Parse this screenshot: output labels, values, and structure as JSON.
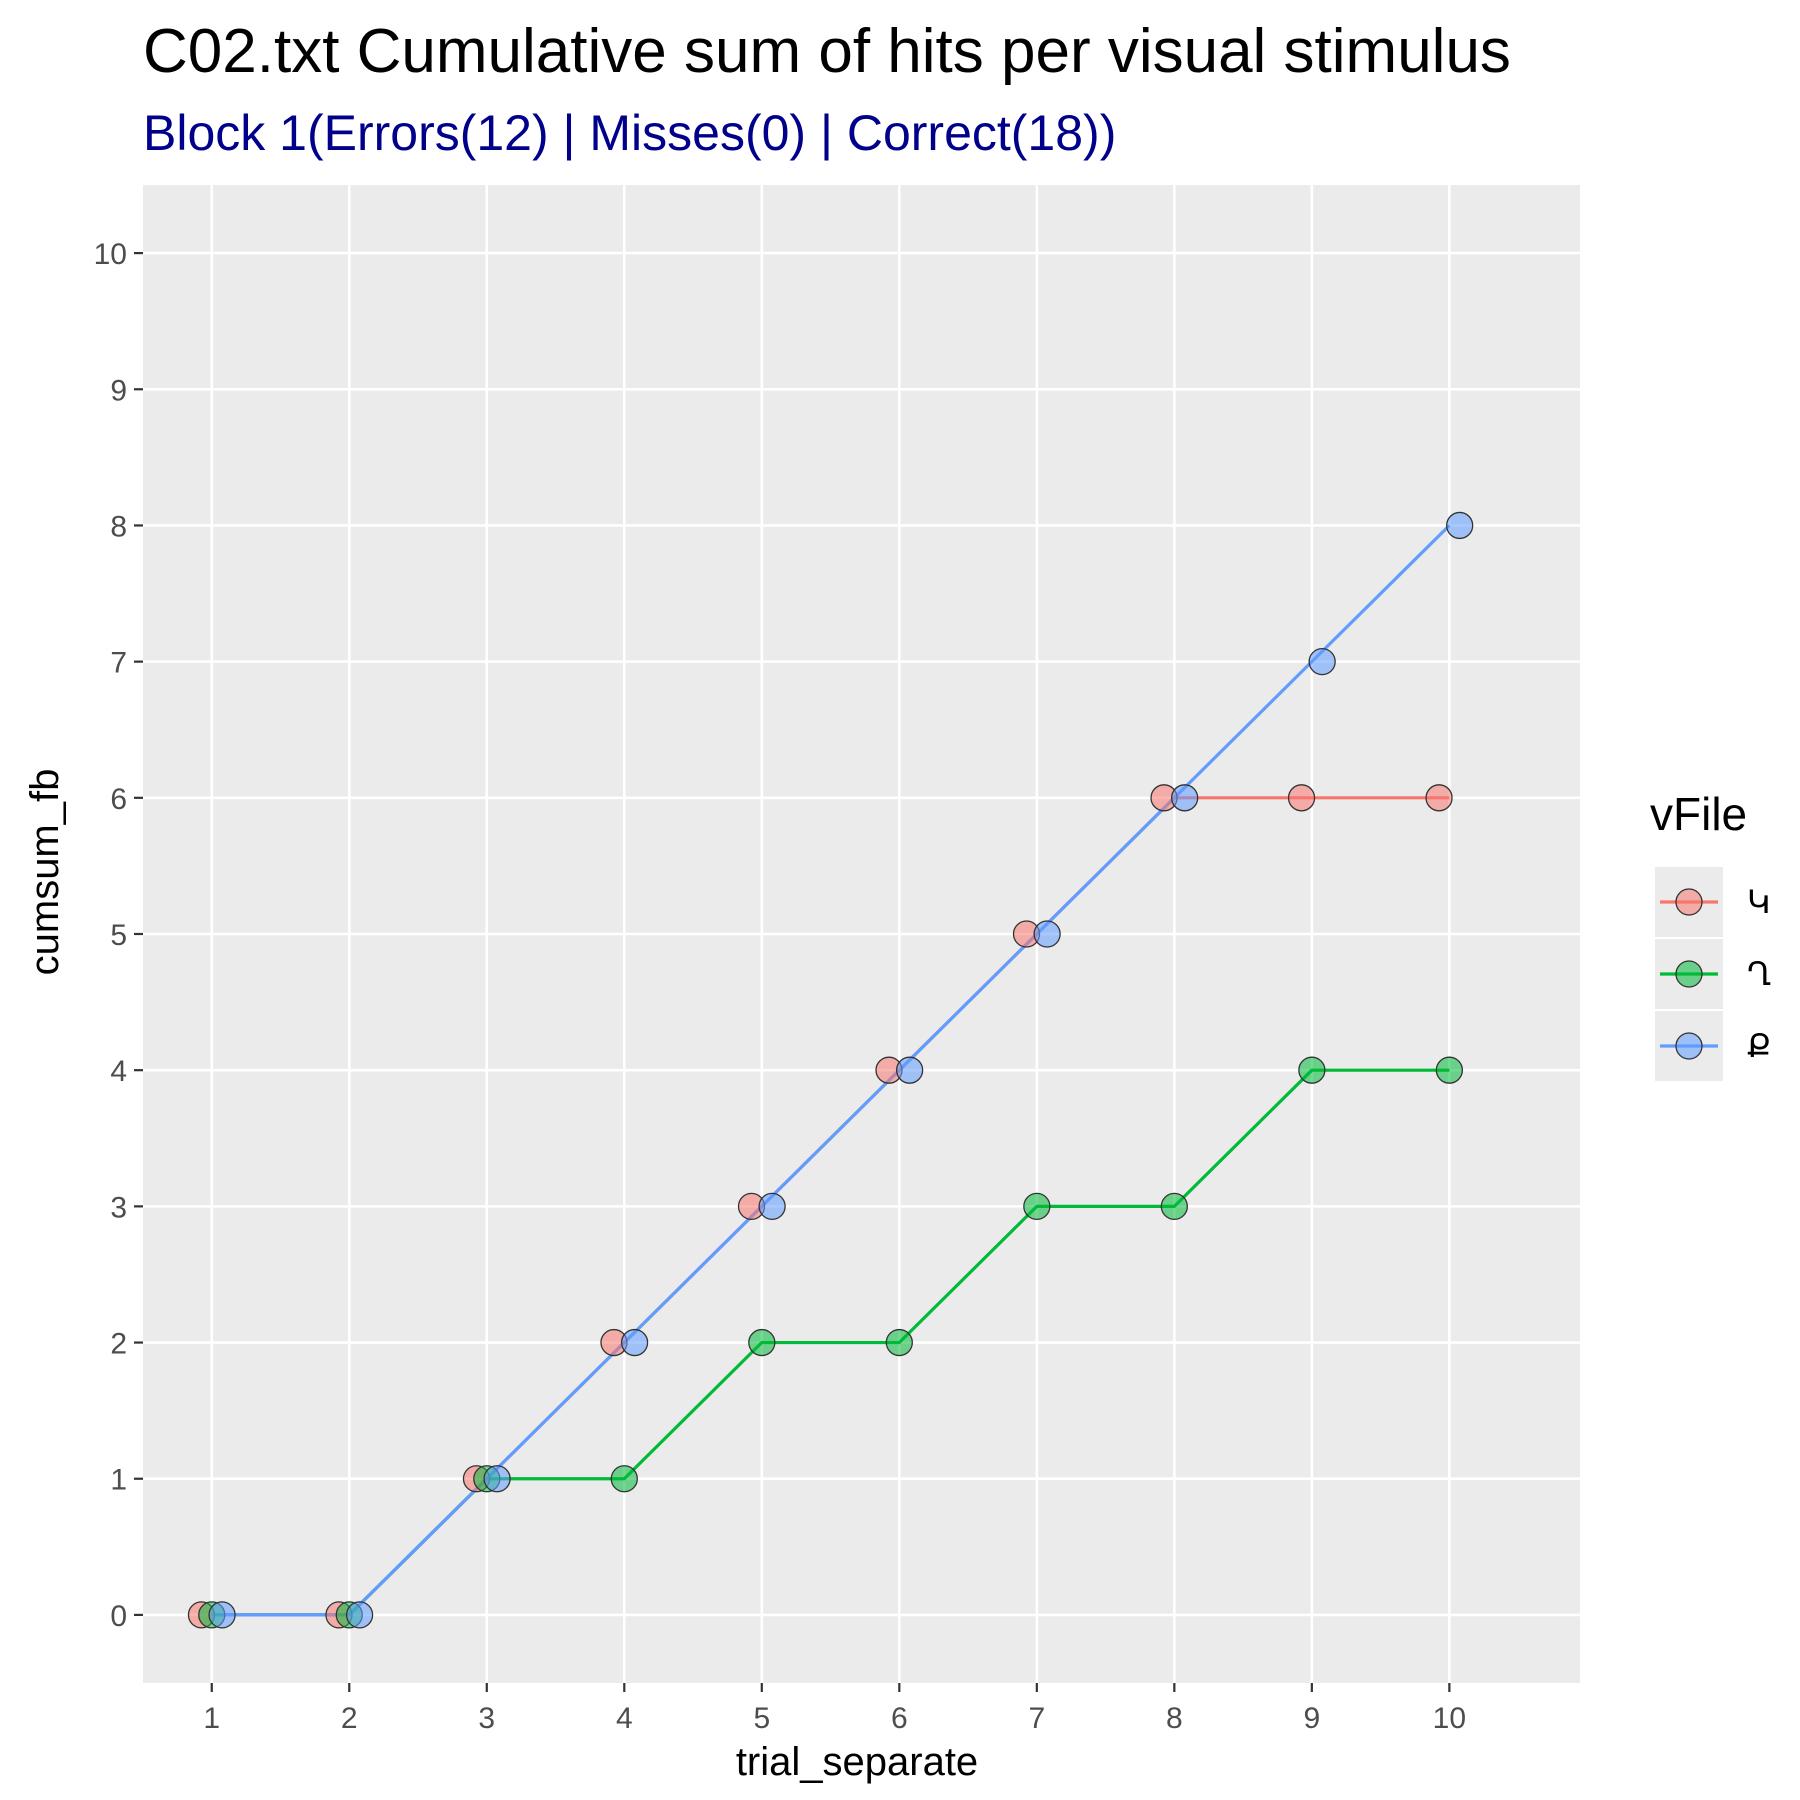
{
  "chart_data": {
    "type": "line",
    "title": "C02.txt Cumulative sum of hits per visual stimulus",
    "subtitle": "Block 1(Errors(12) | Misses(0) | Correct(18))",
    "xlabel": "trial_separate",
    "ylabel": "cumsum_fb",
    "xlim": [
      0.5,
      10.95
    ],
    "ylim": [
      -0.5,
      10.5
    ],
    "x_ticks": [
      1,
      2,
      3,
      4,
      5,
      6,
      7,
      8,
      9,
      10
    ],
    "x_tick_labels": [
      "1",
      "2",
      "3",
      "4",
      "5",
      "6",
      "7",
      "8",
      "9",
      "10"
    ],
    "y_ticks": [
      0,
      1,
      2,
      3,
      4,
      5,
      6,
      7,
      8,
      9,
      10
    ],
    "y_tick_labels": [
      "0",
      "1",
      "2",
      "3",
      "4",
      "5",
      "6",
      "7",
      "8",
      "9",
      "10"
    ],
    "grid": true,
    "legend_title": "vFile",
    "legend_position": "right",
    "series": [
      {
        "name": "Կ",
        "color": "#f8766d",
        "x": [
          1,
          2,
          3,
          4,
          5,
          6,
          7,
          8,
          9,
          10
        ],
        "values": [
          0,
          0,
          1,
          2,
          3,
          4,
          5,
          6,
          6,
          6
        ]
      },
      {
        "name": "Ղ",
        "color": "#00ba38",
        "x": [
          1,
          2,
          3,
          4,
          5,
          6,
          7,
          8,
          9,
          10
        ],
        "values": [
          0,
          0,
          1,
          1,
          2,
          2,
          3,
          3,
          4,
          4
        ]
      },
      {
        "name": "Ք",
        "color": "#619cff",
        "x": [
          1,
          2,
          3,
          4,
          5,
          6,
          7,
          8,
          9,
          10
        ],
        "values": [
          0,
          0,
          1,
          2,
          3,
          4,
          5,
          6,
          7,
          8
        ]
      }
    ],
    "colors": {
      "panel_background": "#ebebeb",
      "grid": "#ffffff",
      "point_stroke": "#333333"
    }
  }
}
